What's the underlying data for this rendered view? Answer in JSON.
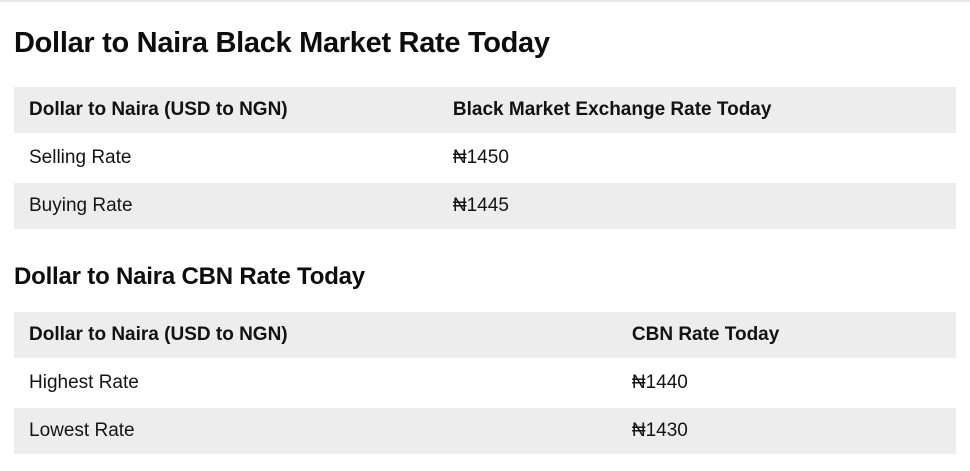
{
  "colors": {
    "page_bg": "#ffffff",
    "band_bg": "#ededed",
    "separator": "#ffffff",
    "text": "#141414",
    "heading": "#0d0d0d",
    "top_edge": "#e7e7e7"
  },
  "sections": [
    {
      "id": "black-market",
      "heading": "Dollar to Naira Black Market Rate Today",
      "table": {
        "columns": [
          "Dollar to Naira (USD to NGN)",
          "Black Market Exchange Rate Today"
        ],
        "rows": [
          {
            "label": "Selling Rate",
            "value": "₦1450"
          },
          {
            "label": "Buying Rate",
            "value": "₦1445"
          }
        ]
      }
    },
    {
      "id": "cbn",
      "heading": "Dollar to Naira CBN Rate Today",
      "table": {
        "columns": [
          "Dollar to Naira (USD to NGN)",
          "CBN Rate Today"
        ],
        "rows": [
          {
            "label": "Highest Rate",
            "value": "₦1440"
          },
          {
            "label": "Lowest Rate",
            "value": "₦1430"
          }
        ]
      }
    }
  ]
}
